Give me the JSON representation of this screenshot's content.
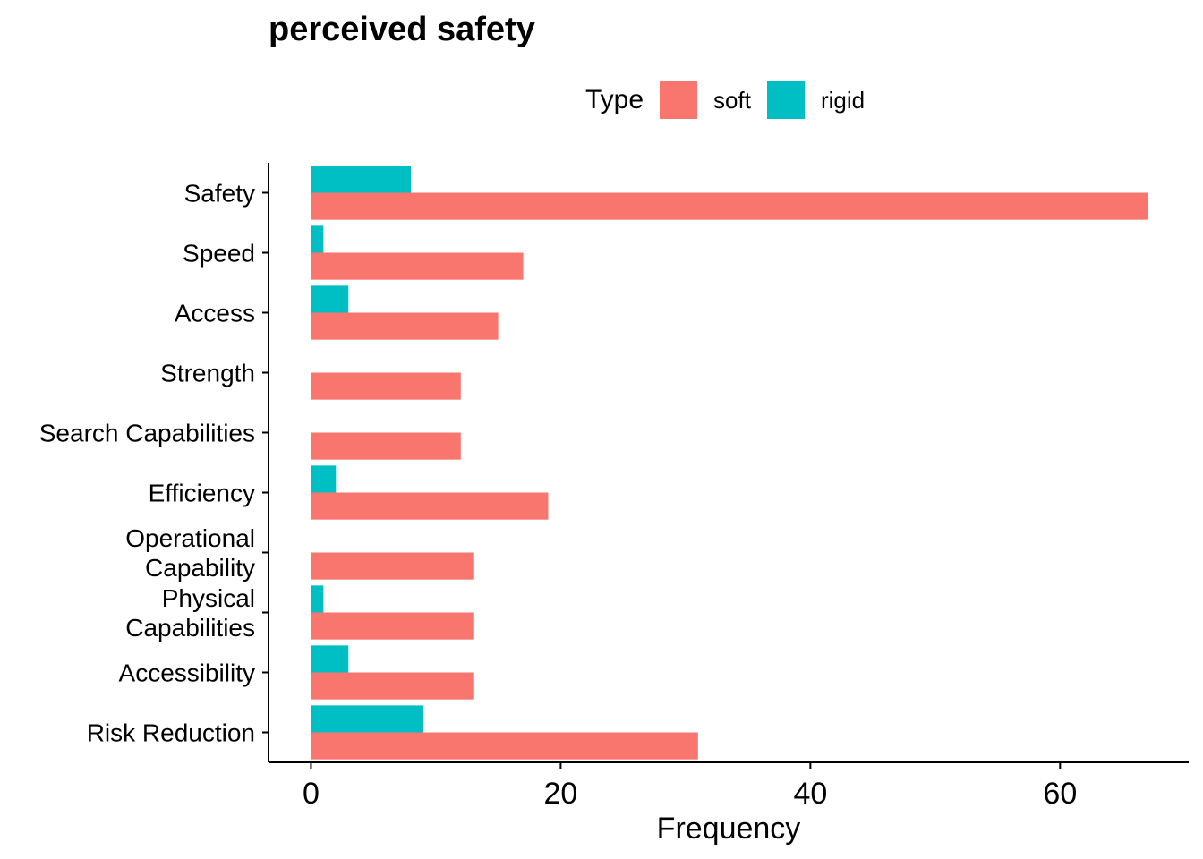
{
  "chart_data": {
    "type": "bar",
    "orientation": "horizontal",
    "title": "perceived safety",
    "xlabel": "Frequency",
    "ylabel": "",
    "xlim": [
      -3.4,
      70.3
    ],
    "x_ticks": [
      0,
      20,
      40,
      60
    ],
    "grid": false,
    "legend": {
      "title": "Type",
      "position": "top"
    },
    "categories": [
      "Safety",
      "Speed",
      "Access",
      "Strength",
      "Search Capabilities",
      "Efficiency",
      "Operational\nCapability",
      "Physical\nCapabilities",
      "Accessibility",
      "Risk Reduction"
    ],
    "series": [
      {
        "name": "soft",
        "color": "#F8766D",
        "values": [
          67,
          17,
          15,
          12,
          12,
          19,
          13,
          13,
          13,
          31
        ]
      },
      {
        "name": "rigid",
        "color": "#00BFC4",
        "values": [
          8,
          1,
          3,
          0,
          0,
          2,
          0,
          1,
          3,
          9
        ]
      }
    ]
  }
}
